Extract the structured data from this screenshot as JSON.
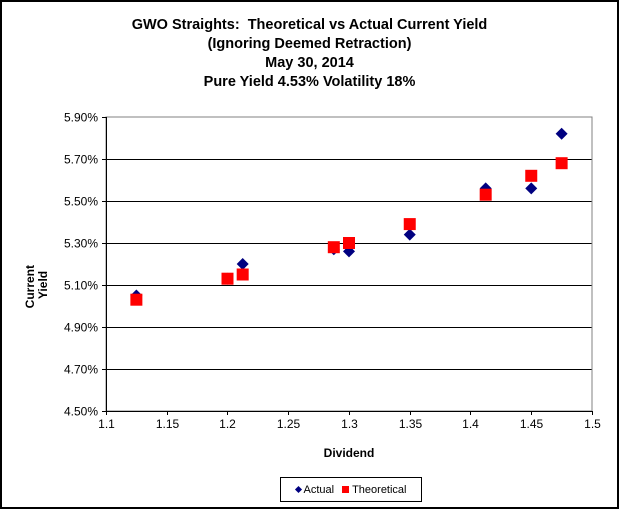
{
  "chart_data": {
    "type": "scatter",
    "title": "GWO Straights: Theoretical vs Actual Current Yield",
    "title_lines": [
      "GWO Straights:  Theoretical vs Actual Current Yield",
      "(Ignoring Deemed Retraction)",
      "May 30, 2014",
      "Pure Yield 4.53% Volatility 18%"
    ],
    "xlabel": "Dividend",
    "ylabel": "Current Yield",
    "ylabel_lines": [
      "Current",
      "Yield"
    ],
    "xlim": [
      1.1,
      1.5
    ],
    "ylim": [
      4.5,
      5.9
    ],
    "x_ticks": [
      1.1,
      1.15,
      1.2,
      1.25,
      1.3,
      1.35,
      1.4,
      1.45,
      1.5
    ],
    "x_tick_labels": [
      "1.1",
      "1.15",
      "1.2",
      "1.25",
      "1.3",
      "1.35",
      "1.4",
      "1.45",
      "1.5"
    ],
    "y_ticks": [
      4.5,
      4.7,
      4.9,
      5.1,
      5.3,
      5.5,
      5.7,
      5.9
    ],
    "y_tick_labels": [
      "4.50%",
      "4.70%",
      "4.90%",
      "5.10%",
      "5.30%",
      "5.50%",
      "5.70%",
      "5.90%"
    ],
    "grid": "horizontal",
    "legend_position": "bottom",
    "series": [
      {
        "name": "Actual",
        "marker": "diamond",
        "color": "#000080",
        "points": [
          {
            "x": 1.125,
            "y": 5.05
          },
          {
            "x": 1.2,
            "y": 5.13
          },
          {
            "x": 1.2125,
            "y": 5.2
          },
          {
            "x": 1.2875,
            "y": 5.27
          },
          {
            "x": 1.3,
            "y": 5.26
          },
          {
            "x": 1.35,
            "y": 5.34
          },
          {
            "x": 1.4125,
            "y": 5.56
          },
          {
            "x": 1.45,
            "y": 5.56
          },
          {
            "x": 1.475,
            "y": 5.82
          }
        ]
      },
      {
        "name": "Theoretical",
        "marker": "square",
        "color": "#ff0000",
        "points": [
          {
            "x": 1.125,
            "y": 5.03
          },
          {
            "x": 1.2,
            "y": 5.13
          },
          {
            "x": 1.2125,
            "y": 5.15
          },
          {
            "x": 1.2875,
            "y": 5.28
          },
          {
            "x": 1.3,
            "y": 5.3
          },
          {
            "x": 1.35,
            "y": 5.39
          },
          {
            "x": 1.4125,
            "y": 5.53
          },
          {
            "x": 1.45,
            "y": 5.62
          },
          {
            "x": 1.475,
            "y": 5.68
          }
        ]
      }
    ]
  }
}
